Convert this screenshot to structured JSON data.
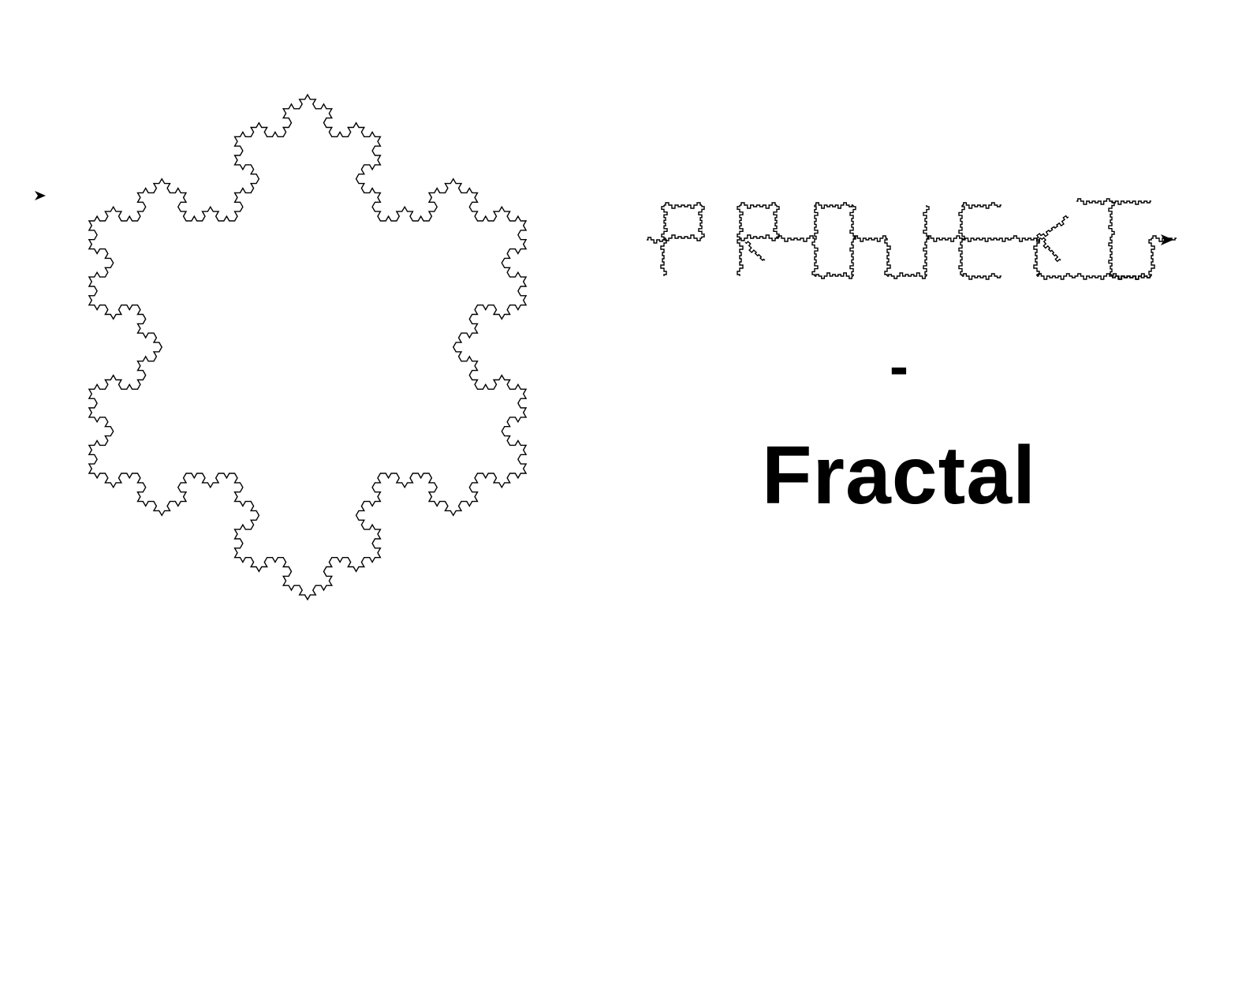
{
  "colors": {
    "background": "#ffffff",
    "ink": "#000000"
  },
  "figure": {
    "shape": "koch-snowflake",
    "iterations": 4
  },
  "title": {
    "text": "PROJEKT",
    "style": "fractal-lettering"
  },
  "separator": "-",
  "subtitle": "Fractal"
}
